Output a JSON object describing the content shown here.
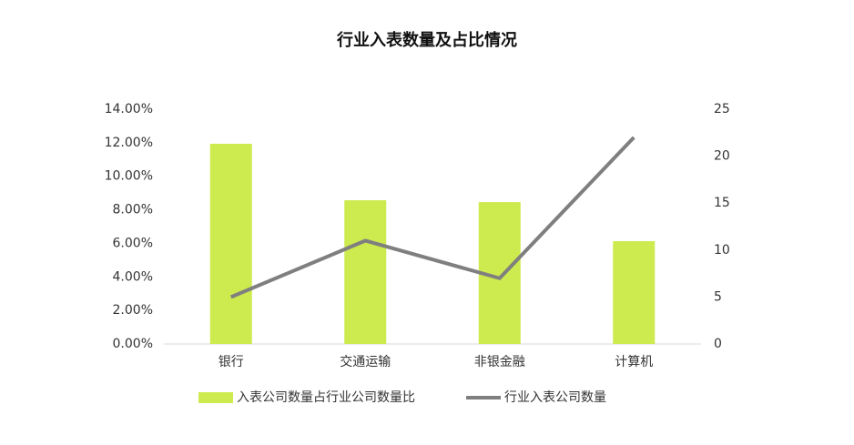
{
  "chart_data": {
    "type": "bar",
    "title": "行业入表数量及占比情况",
    "categories": [
      "银行",
      "交通运输",
      "非银金融",
      "计算机"
    ],
    "series": [
      {
        "name": "入表公司数量占行业公司数量比",
        "type": "bar",
        "color": "#cdea4f",
        "values": [
          11.94,
          8.57,
          8.46,
          6.13
        ]
      },
      {
        "name": "行业入表公司数量",
        "type": "line",
        "axis": "y2",
        "color": "#7f7f7f",
        "values": [
          5,
          11,
          7,
          22
        ]
      }
    ],
    "ylim": [
      0,
      14
    ],
    "yticks": [
      {
        "value": 0,
        "label": "0.00%"
      },
      {
        "value": 2,
        "label": "2.00%"
      },
      {
        "value": 4,
        "label": "4.00%"
      },
      {
        "value": 6,
        "label": "6.00%"
      },
      {
        "value": 8,
        "label": "8.00%"
      },
      {
        "value": 10,
        "label": "10.00%"
      },
      {
        "value": 12,
        "label": "12.00%"
      },
      {
        "value": 14,
        "label": "14.00%"
      }
    ],
    "y2lim": [
      0,
      25
    ],
    "y2ticks": [
      0,
      5,
      10,
      15,
      20,
      25
    ],
    "grid": false,
    "legend": "bottom"
  }
}
